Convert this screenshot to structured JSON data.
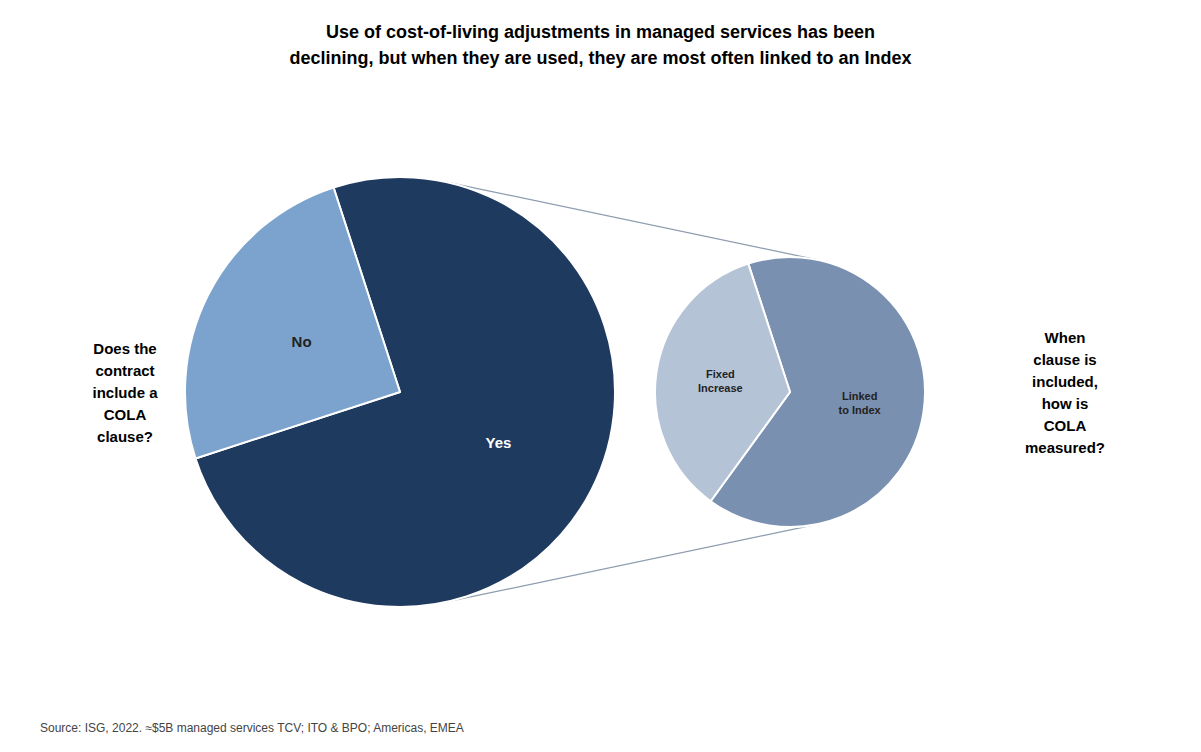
{
  "chart_data": [
    {
      "type": "pie",
      "title": "Use of cost-of-living adjustments in managed services has been\ndeclining, but when they are used, they are most often linked to an Index",
      "categories": [
        "Yes",
        "No"
      ],
      "values": [
        75,
        25
      ],
      "colors": [
        "#1e3a5f",
        "#7ba3cd"
      ],
      "annotations": [
        "Does the\ncontract\ninclude a\nCOLA\nclause?"
      ],
      "source": "Source: ISG, 2022. ≈$5B managed services TCV; ITO & BPO; Americas, EMEA"
    },
    {
      "type": "pie",
      "categories": [
        "Linked\nto Index",
        "Fixed\nIncrease"
      ],
      "values": [
        65,
        35
      ],
      "colors": [
        "#7a90b0",
        "#b5c3d6"
      ],
      "annotations": [
        "When\nclause is\nincluded,\nhow is\nCOLA\nmeasured?"
      ]
    }
  ]
}
